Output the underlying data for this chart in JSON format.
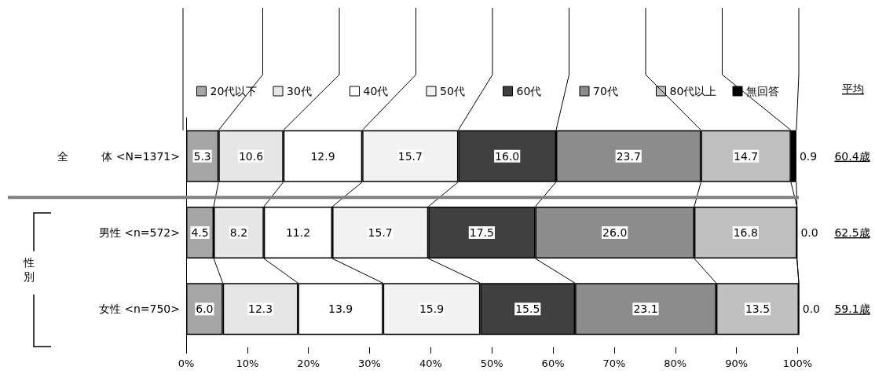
{
  "chart_data": {
    "type": "bar",
    "orientation": "horizontal",
    "stacked": true,
    "legend": "top",
    "categories": [
      "全　　　体 <N=1371>",
      "男性 <n=572>",
      "女性 <n=750>"
    ],
    "xlim": [
      0,
      100.2
    ],
    "xticks": [
      {
        "value": 0,
        "label": "0%"
      },
      {
        "value": 10,
        "label": "10%"
      },
      {
        "value": 20,
        "label": "20%"
      },
      {
        "value": 30,
        "label": "30%"
      },
      {
        "value": 40,
        "label": "40%"
      },
      {
        "value": 50,
        "label": "50%"
      },
      {
        "value": 60,
        "label": "60%"
      },
      {
        "value": 70,
        "label": "70%"
      },
      {
        "value": 80,
        "label": "80%"
      },
      {
        "value": 90,
        "label": "90%"
      },
      {
        "value": 100,
        "label": "100%"
      }
    ],
    "grid": false,
    "series": [
      {
        "name": "20代以下",
        "color": "#a6a6a6",
        "values": [
          5.3,
          4.5,
          6.0
        ],
        "value_labels": [
          "5.3",
          "4.5",
          "6.0"
        ]
      },
      {
        "name": "30代",
        "color": "#e6e6e6",
        "values": [
          10.6,
          8.2,
          12.3
        ],
        "value_labels": [
          "10.6",
          "8.2",
          "12.3"
        ]
      },
      {
        "name": "40代",
        "color": "#ffffff",
        "values": [
          12.9,
          11.2,
          13.9
        ],
        "value_labels": [
          "12.9",
          "11.2",
          "13.9"
        ]
      },
      {
        "name": "50代",
        "color": "#f2f2f2",
        "values": [
          15.7,
          15.7,
          15.9
        ],
        "value_labels": [
          "15.7",
          "15.7",
          "15.9"
        ]
      },
      {
        "name": "60代",
        "color": "#404040",
        "values": [
          16.0,
          17.5,
          15.5
        ],
        "value_labels": [
          "16.0",
          "17.5",
          "15.5"
        ]
      },
      {
        "name": "70代",
        "color": "#8c8c8c",
        "values": [
          23.7,
          26.0,
          23.1
        ],
        "value_labels": [
          "23.7",
          "26.0",
          "23.1"
        ]
      },
      {
        "name": "80代以上",
        "color": "#bfbfbf",
        "values": [
          14.7,
          16.8,
          13.5
        ],
        "value_labels": [
          "14.7",
          "16.8",
          "13.5"
        ]
      },
      {
        "name": "無回答",
        "color": "#000000",
        "values": [
          0.9,
          0.0,
          0.0
        ],
        "value_labels": [
          "0.9",
          "0.0",
          "0.0"
        ]
      }
    ],
    "annotations": [
      "平均",
      "60.4歳",
      "62.5歳",
      "59.1歳",
      "性別"
    ]
  }
}
